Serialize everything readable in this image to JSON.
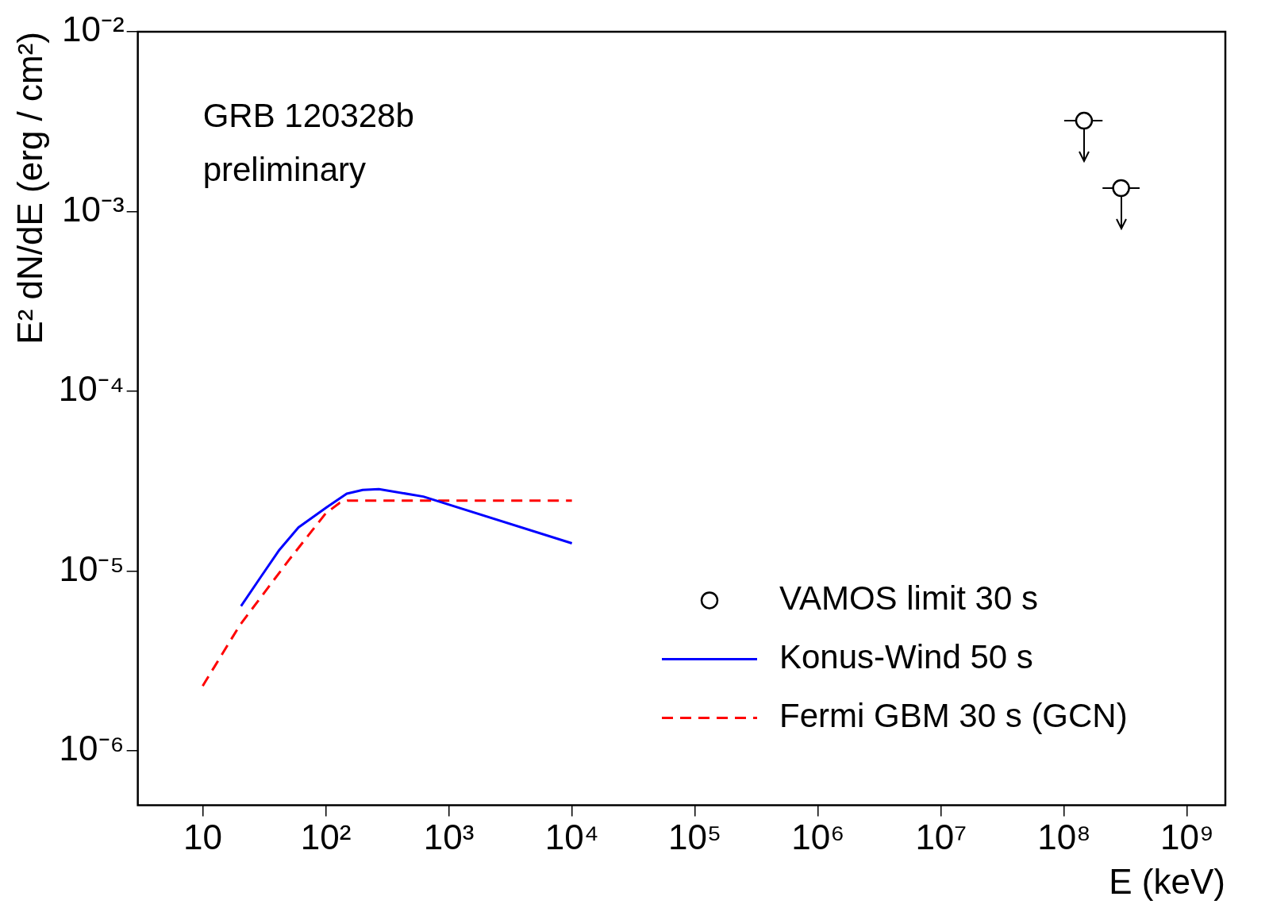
{
  "chart_data": {
    "type": "line",
    "xlabel": "E (keV)",
    "ylabel": "E² dN/dE (erg / cm²)",
    "log": "xy",
    "grid": false,
    "legend": "bottom right",
    "xlim": [
      2.97,
      2040000000.0
    ],
    "xticks": [
      {
        "value": 10,
        "label": "10"
      },
      {
        "value": 100,
        "label": "10²"
      },
      {
        "value": 1000,
        "label": "10³"
      },
      {
        "value": 10000,
        "label": "10⁴"
      },
      {
        "value": 100000,
        "label": "10⁵"
      },
      {
        "value": 1000000,
        "label": "10⁶"
      },
      {
        "value": 10000000,
        "label": "10⁷"
      },
      {
        "value": 100000000,
        "label": "10⁸"
      },
      {
        "value": 1000000000,
        "label": "10⁹"
      }
    ],
    "ylim": [
      5e-07,
      0.01
    ],
    "yticks": [
      {
        "value": 1e-06,
        "label": "10⁻⁶"
      },
      {
        "value": 1e-05,
        "label": "10⁻⁵"
      },
      {
        "value": 0.0001,
        "label": "10⁻⁴"
      },
      {
        "value": 0.001,
        "label": "10⁻³"
      },
      {
        "value": 0.01,
        "label": "10⁻²"
      }
    ],
    "annotations": [
      "GRB 120328b",
      "preliminary"
    ],
    "series": [
      {
        "name": "VAMOS limit 30 s",
        "type": "scatter",
        "marker": "circle",
        "color": "#000000",
        "x": [
          145000000.0,
          290000000.0
        ],
        "values": [
          0.0032,
          0.00135
        ],
        "xerrors": [
          [
            100000000.0,
            205000000.0
          ],
          [
            205000000.0,
            410000000.0
          ]
        ]
      },
      {
        "name": "Konus-Wind 50 s",
        "line_style": "solid",
        "color": "#0000ff",
        "x": [
          20.5,
          30,
          41.5,
          60,
          102,
          148,
          200,
          270,
          620,
          10000
        ],
        "values": [
          6.4e-06,
          9.4e-06,
          1.3e-05,
          1.75e-05,
          2.27e-05,
          2.7e-05,
          2.83e-05,
          2.86e-05,
          2.6e-05,
          1.43e-05
        ]
      },
      {
        "name": "Fermi GBM 30 s (GCN)",
        "line_style": "dashed",
        "color": "#ff0000",
        "x": [
          10,
          20,
          50,
          100,
          130,
          150,
          10000
        ],
        "values": [
          2.3e-06,
          5e-06,
          1.15e-05,
          2.1e-05,
          2.4e-05,
          2.47e-05,
          2.47e-05
        ]
      }
    ]
  }
}
